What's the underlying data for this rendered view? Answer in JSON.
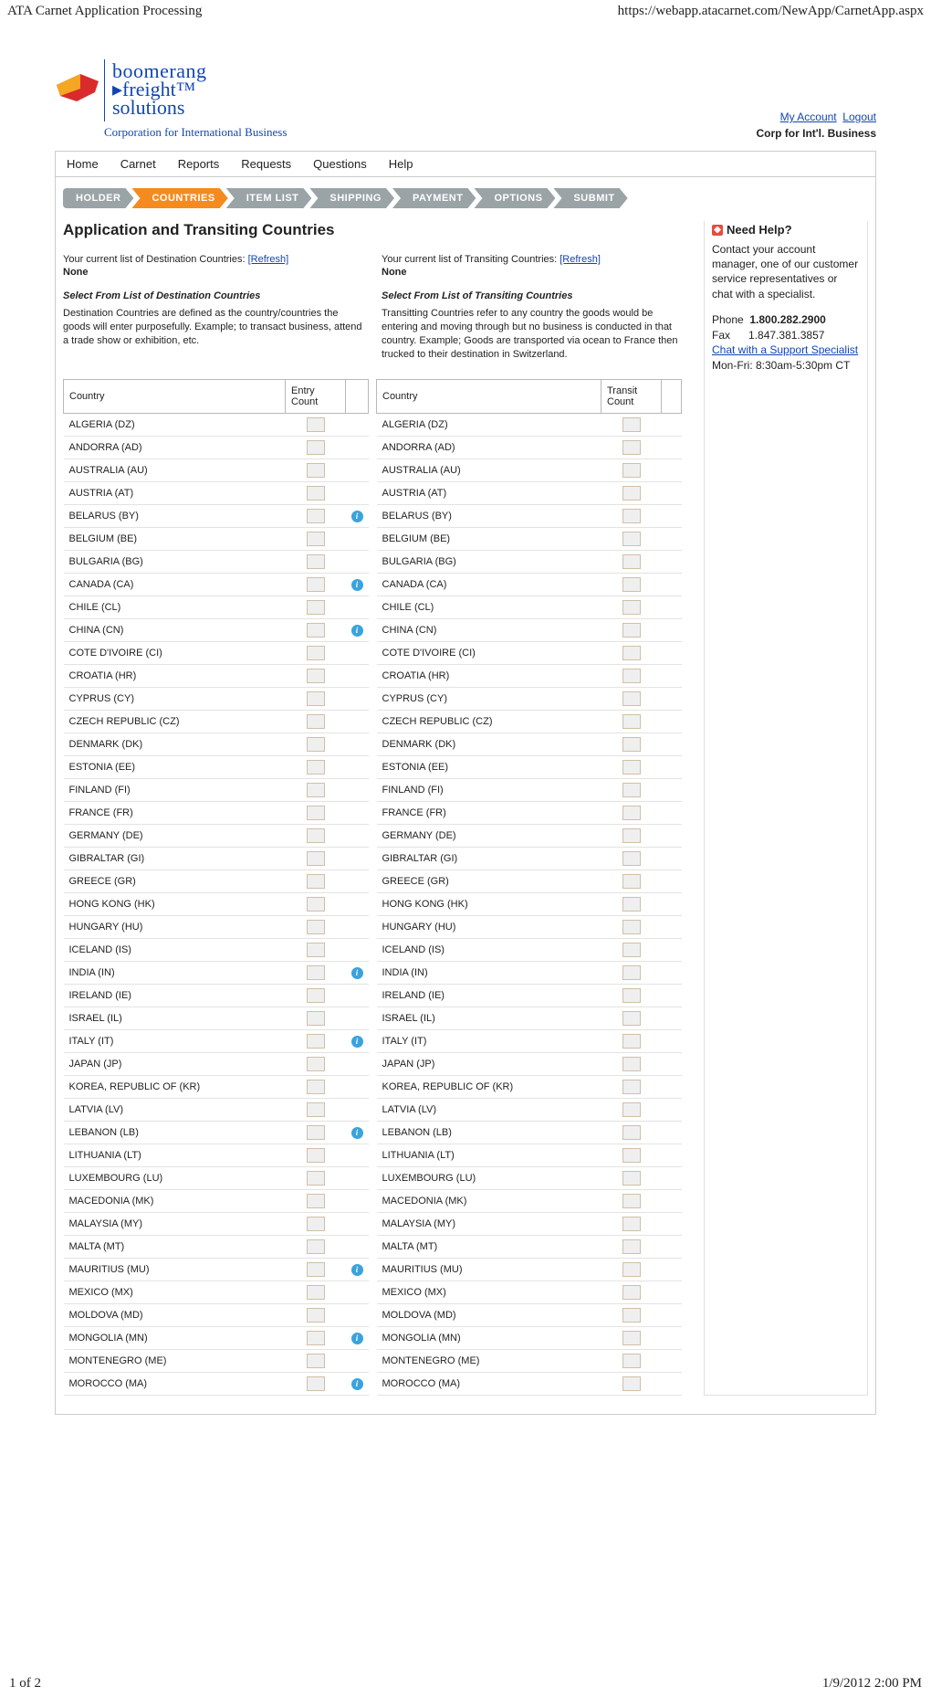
{
  "browser": {
    "title": "ATA Carnet Application Processing",
    "url": "https://webapp.atacarnet.com/NewApp/CarnetApp.aspx"
  },
  "logo": {
    "line1": "boomerang",
    "line2": "freight™",
    "line3": "solutions",
    "corp": "Corporation for International Business"
  },
  "account": {
    "my_account": "My Account",
    "logout": "Logout",
    "company": "Corp for Int'l. Business"
  },
  "menu": [
    "Home",
    "Carnet",
    "Reports",
    "Requests",
    "Questions",
    "Help"
  ],
  "steps": [
    {
      "label": "HOLDER",
      "active": false
    },
    {
      "label": "COUNTRIES",
      "active": true
    },
    {
      "label": "ITEM LIST",
      "active": false
    },
    {
      "label": "SHIPPING",
      "active": false
    },
    {
      "label": "PAYMENT",
      "active": false
    },
    {
      "label": "OPTIONS",
      "active": false
    },
    {
      "label": "SUBMIT",
      "active": false
    }
  ],
  "page_title": "Application and Transiting Countries",
  "dest": {
    "current_label": "Your current list of Destination Countries: ",
    "refresh": "[Refresh]",
    "none": "None",
    "select_head": "Select From List of Destination Countries",
    "desc": "Destination Countries are defined as the country/countries the goods will enter purposefully. Example; to transact business, attend a trade show or exhibition, etc.",
    "th_country": "Country",
    "th_count": "Entry Count"
  },
  "transit": {
    "current_label": "Your current list of Transiting Countries: ",
    "refresh": "[Refresh]",
    "none": "None",
    "select_head": "Select From List of Transiting Countries",
    "desc": "Transitting Countries refer to any country the goods would be entering and moving through but no business is conducted in that country. Example; Goods are transported via ocean to France then trucked to their destination in Switzerland.",
    "th_country": "Country",
    "th_count": "Transit Count"
  },
  "countries": [
    {
      "name": "ALGERIA (DZ)",
      "info": false
    },
    {
      "name": "ANDORRA (AD)",
      "info": false
    },
    {
      "name": "AUSTRALIA (AU)",
      "info": false
    },
    {
      "name": "AUSTRIA (AT)",
      "info": false
    },
    {
      "name": "BELARUS (BY)",
      "info": true
    },
    {
      "name": "BELGIUM (BE)",
      "info": false
    },
    {
      "name": "BULGARIA (BG)",
      "info": false
    },
    {
      "name": "CANADA (CA)",
      "info": true
    },
    {
      "name": "CHILE (CL)",
      "info": false
    },
    {
      "name": "CHINA (CN)",
      "info": true
    },
    {
      "name": "COTE D'IVOIRE (CI)",
      "info": false
    },
    {
      "name": "CROATIA (HR)",
      "info": false
    },
    {
      "name": "CYPRUS (CY)",
      "info": false
    },
    {
      "name": "CZECH REPUBLIC (CZ)",
      "info": false
    },
    {
      "name": "DENMARK (DK)",
      "info": false
    },
    {
      "name": "ESTONIA (EE)",
      "info": false
    },
    {
      "name": "FINLAND (FI)",
      "info": false
    },
    {
      "name": "FRANCE (FR)",
      "info": false
    },
    {
      "name": "GERMANY (DE)",
      "info": false
    },
    {
      "name": "GIBRALTAR (GI)",
      "info": false
    },
    {
      "name": "GREECE (GR)",
      "info": false
    },
    {
      "name": "HONG KONG (HK)",
      "info": false
    },
    {
      "name": "HUNGARY (HU)",
      "info": false
    },
    {
      "name": "ICELAND (IS)",
      "info": false
    },
    {
      "name": "INDIA (IN)",
      "info": true
    },
    {
      "name": "IRELAND (IE)",
      "info": false
    },
    {
      "name": "ISRAEL (IL)",
      "info": false
    },
    {
      "name": "ITALY (IT)",
      "info": true
    },
    {
      "name": "JAPAN (JP)",
      "info": false
    },
    {
      "name": "KOREA, REPUBLIC OF (KR)",
      "info": false
    },
    {
      "name": "LATVIA (LV)",
      "info": false
    },
    {
      "name": "LEBANON (LB)",
      "info": true
    },
    {
      "name": "LITHUANIA (LT)",
      "info": false
    },
    {
      "name": "LUXEMBOURG (LU)",
      "info": false
    },
    {
      "name": "MACEDONIA (MK)",
      "info": false
    },
    {
      "name": "MALAYSIA (MY)",
      "info": false
    },
    {
      "name": "MALTA (MT)",
      "info": false
    },
    {
      "name": "MAURITIUS (MU)",
      "info": true
    },
    {
      "name": "MEXICO (MX)",
      "info": false
    },
    {
      "name": "MOLDOVA (MD)",
      "info": false
    },
    {
      "name": "MONGOLIA (MN)",
      "info": true
    },
    {
      "name": "MONTENEGRO (ME)",
      "info": false
    },
    {
      "name": "MOROCCO (MA)",
      "info": true
    }
  ],
  "help": {
    "title": "Need Help?",
    "body": "Contact your account manager, one of our customer service representatives or chat with a specialist.",
    "phone_label": "Phone",
    "phone": "1.800.282.2900",
    "fax_label": "Fax",
    "fax": "1.847.381.3857",
    "chat": "Chat with a Support Specialist",
    "hours": "Mon-Fri: 8:30am-5:30pm CT"
  },
  "footer": {
    "page": "1 of 2",
    "date": "1/9/2012 2:00 PM"
  }
}
